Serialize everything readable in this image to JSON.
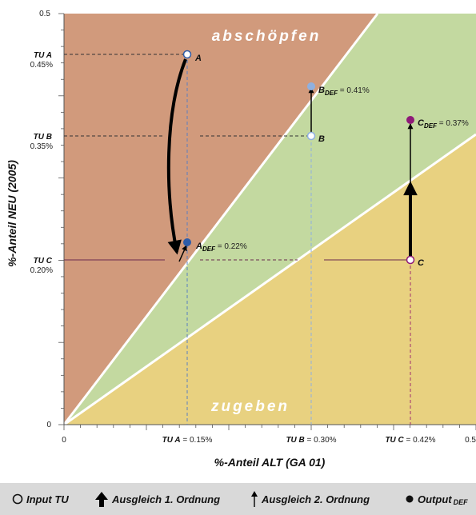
{
  "axes": {
    "x_title": "%-Anteil ALT (GA 01)",
    "y_title": "%-Anteil NEU (2005)",
    "x_min_label": "0",
    "x_max_label": "0.5",
    "y_min_label": "0",
    "y_max_label": "0.5",
    "range": [
      0,
      0.5
    ]
  },
  "regions": {
    "upper": "abschöpfen",
    "lower": "zugeben",
    "colors": {
      "upper": "#d19a7c",
      "middle": "#c3d9a0",
      "lower": "#e8d180"
    }
  },
  "points": {
    "A": {
      "name": "A",
      "tu_label": "TU A",
      "tu_pct": "0.45%",
      "x_label_prefix": "TU A",
      "x_label_value": " = 0.15%",
      "x": 0.15,
      "y": 0.45,
      "def_y": 0.22,
      "def_name": "A",
      "def_value": " = 0.22%",
      "color": "#2e5ca8"
    },
    "B": {
      "name": "B",
      "tu_label": "TU B",
      "tu_pct": "0.35%",
      "x_label_prefix": "TU B",
      "x_label_value": " = 0.30%",
      "x": 0.3,
      "y": 0.35,
      "def_y": 0.41,
      "def_name": "B",
      "def_value": " = 0.41%",
      "color": "#8fb0e0"
    },
    "C": {
      "name": "C",
      "tu_label": "TU C",
      "tu_pct": "0.20%",
      "x_label_prefix": "TU C",
      "x_label_value": " = 0.42%",
      "x": 0.42,
      "y": 0.2,
      "def_y": 0.37,
      "def_name": "C",
      "def_value": " = 0.37%",
      "color": "#8e1a78"
    }
  },
  "def_subscript": "DEF",
  "legend": {
    "input": "Input TU",
    "first_order": "Ausgleich 1. Ordnung",
    "second_order": "Ausgleich 2. Ordnung",
    "output": "Output",
    "output_sub": "DEF"
  }
}
